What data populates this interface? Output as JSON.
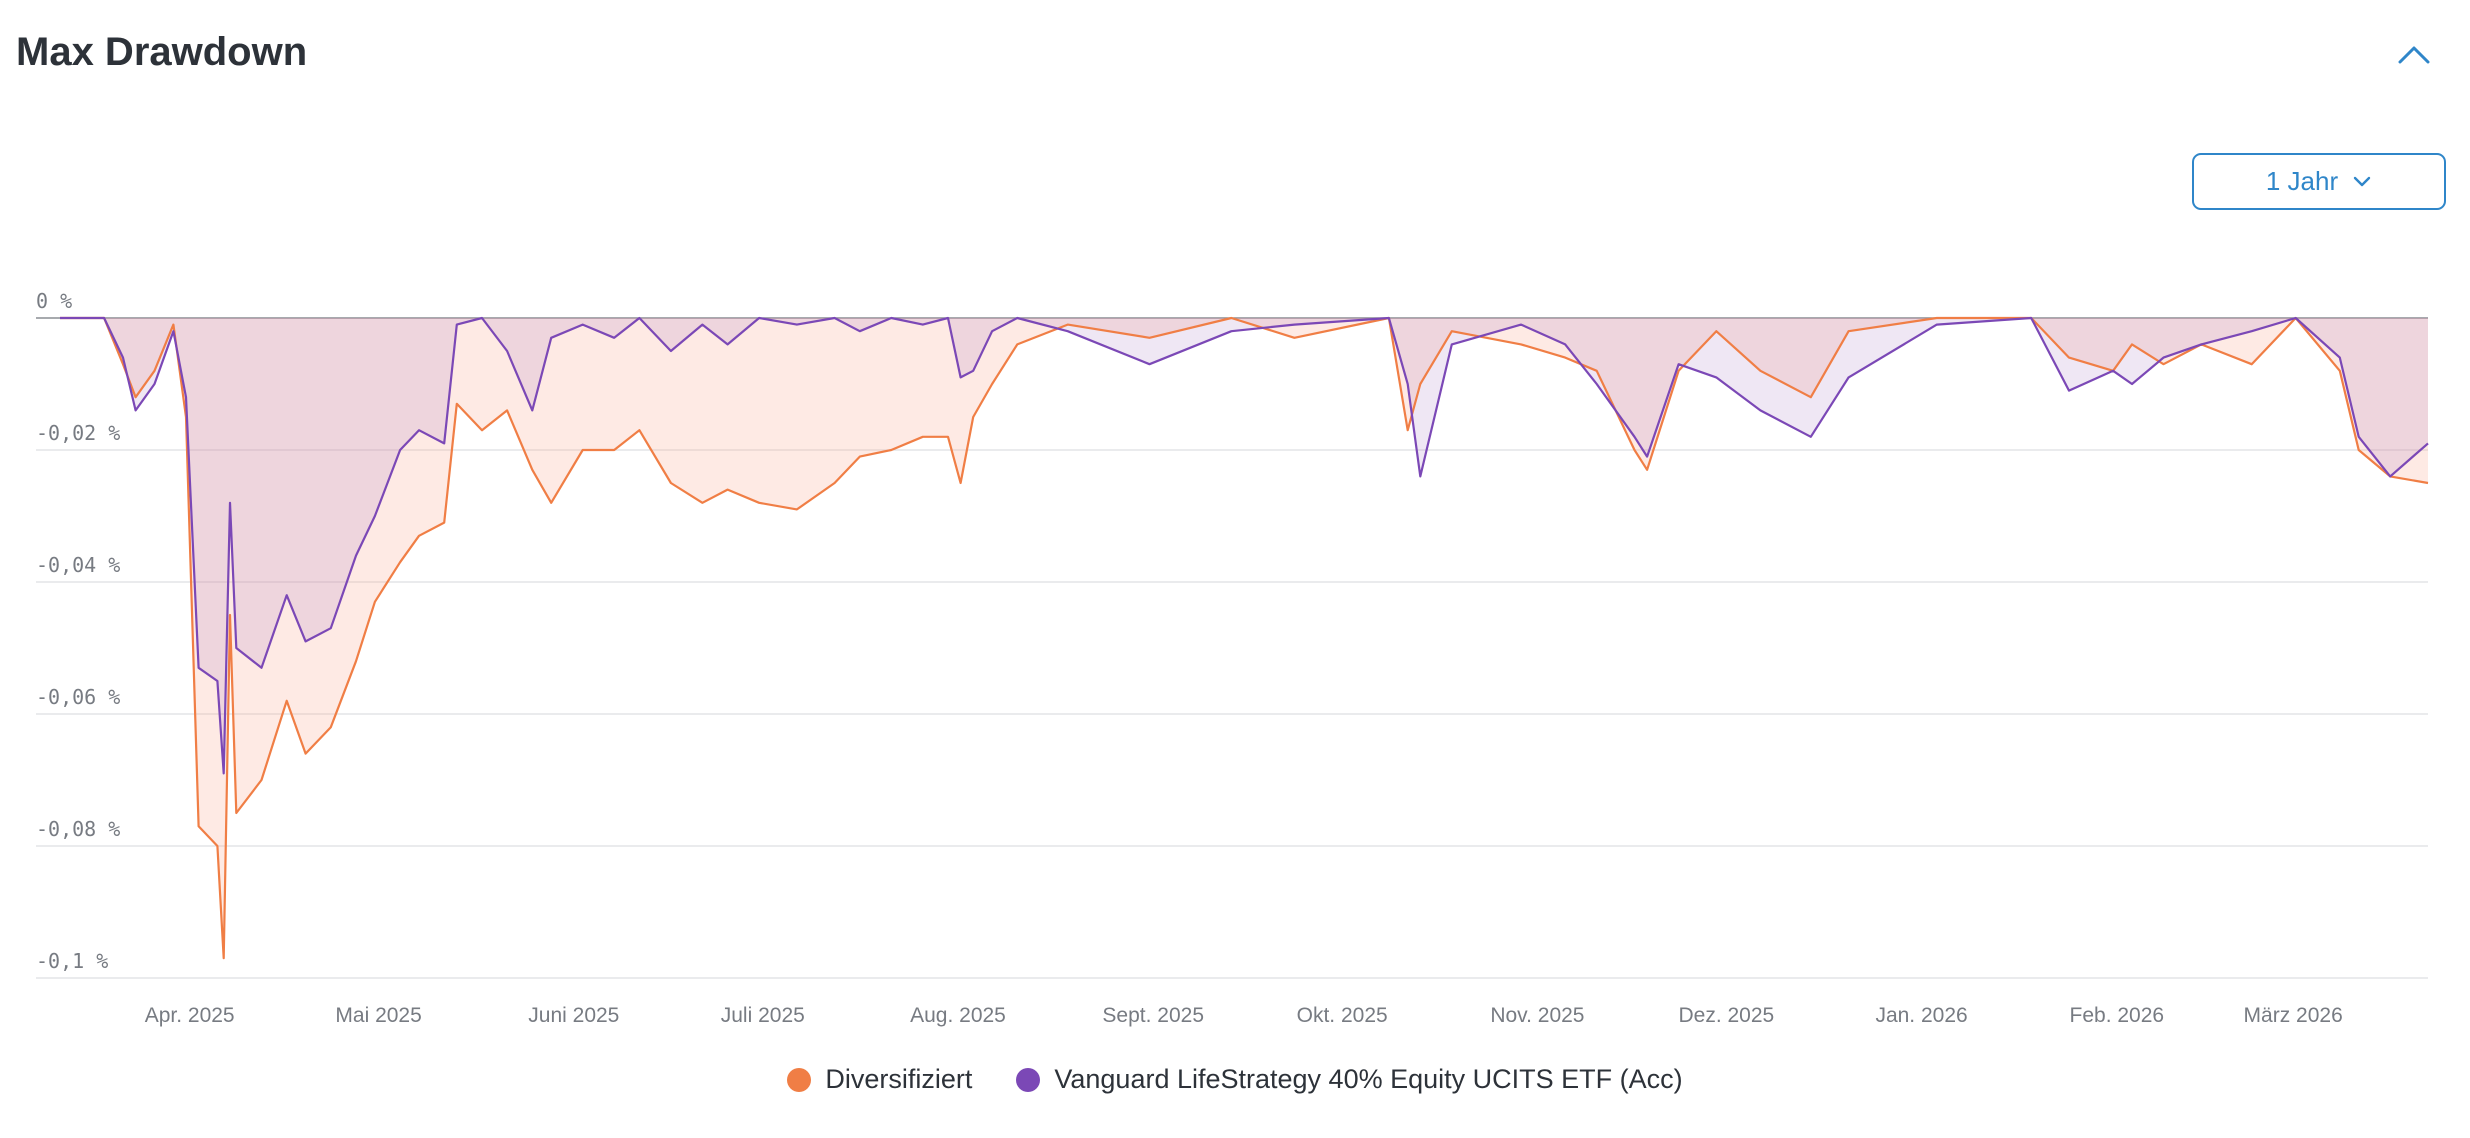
{
  "title": "Max Drawdown",
  "range_selector": {
    "label": "1 Jahr"
  },
  "colors": {
    "diversifiziert": "#f07e45",
    "vanguard": "#7b48b6",
    "accent": "#2f86c9"
  },
  "chart_data": {
    "type": "area",
    "ylim": [
      -0.1,
      0
    ],
    "yticks": [
      "0 %",
      "-0,02 %",
      "-0,04 %",
      "-0,06 %",
      "-0,08 %",
      "-0,1 %"
    ],
    "ytick_values": [
      0,
      -0.02,
      -0.04,
      -0.06,
      -0.08,
      -0.1
    ],
    "grid": true,
    "legend_position": "bottom",
    "xticks": [
      "Apr. 2025",
      "Mai 2025",
      "Juni 2025",
      "Juli 2025",
      "Aug. 2025",
      "Sept. 2025",
      "Okt. 2025",
      "Nov. 2025",
      "Dez. 2025",
      "Jan. 2026",
      "Feb. 2026",
      "März 2026"
    ],
    "x_range": [
      "2025-03-13",
      "2026-03-24"
    ],
    "series": [
      {
        "name": "Diversifiziert",
        "points": [
          [
            "2025-03-13",
            0
          ],
          [
            "2025-03-20",
            0
          ],
          [
            "2025-03-23",
            -0.007
          ],
          [
            "2025-03-25",
            -0.012
          ],
          [
            "2025-03-28",
            -0.008
          ],
          [
            "2025-03-31",
            -0.001
          ],
          [
            "2025-04-02",
            -0.015
          ],
          [
            "2025-04-04",
            -0.077
          ],
          [
            "2025-04-07",
            -0.08
          ],
          [
            "2025-04-08",
            -0.097
          ],
          [
            "2025-04-09",
            -0.045
          ],
          [
            "2025-04-10",
            -0.075
          ],
          [
            "2025-04-14",
            -0.07
          ],
          [
            "2025-04-18",
            -0.058
          ],
          [
            "2025-04-21",
            -0.066
          ],
          [
            "2025-04-25",
            -0.062
          ],
          [
            "2025-04-29",
            -0.052
          ],
          [
            "2025-05-02",
            -0.043
          ],
          [
            "2025-05-06",
            -0.037
          ],
          [
            "2025-05-09",
            -0.033
          ],
          [
            "2025-05-13",
            -0.031
          ],
          [
            "2025-05-15",
            -0.013
          ],
          [
            "2025-05-19",
            -0.017
          ],
          [
            "2025-05-23",
            -0.014
          ],
          [
            "2025-05-27",
            -0.023
          ],
          [
            "2025-05-30",
            -0.028
          ],
          [
            "2025-06-04",
            -0.02
          ],
          [
            "2025-06-09",
            -0.02
          ],
          [
            "2025-06-13",
            -0.017
          ],
          [
            "2025-06-18",
            -0.025
          ],
          [
            "2025-06-23",
            -0.028
          ],
          [
            "2025-06-27",
            -0.026
          ],
          [
            "2025-07-02",
            -0.028
          ],
          [
            "2025-07-08",
            -0.029
          ],
          [
            "2025-07-14",
            -0.025
          ],
          [
            "2025-07-18",
            -0.021
          ],
          [
            "2025-07-23",
            -0.02
          ],
          [
            "2025-07-28",
            -0.018
          ],
          [
            "2025-08-01",
            -0.018
          ],
          [
            "2025-08-03",
            -0.025
          ],
          [
            "2025-08-05",
            -0.015
          ],
          [
            "2025-08-08",
            -0.01
          ],
          [
            "2025-08-12",
            -0.004
          ],
          [
            "2025-08-20",
            -0.001
          ],
          [
            "2025-09-02",
            -0.003
          ],
          [
            "2025-09-15",
            0
          ],
          [
            "2025-09-25",
            -0.003
          ],
          [
            "2025-10-10",
            0
          ],
          [
            "2025-10-13",
            -0.017
          ],
          [
            "2025-10-15",
            -0.01
          ],
          [
            "2025-10-20",
            -0.002
          ],
          [
            "2025-10-31",
            -0.004
          ],
          [
            "2025-11-07",
            -0.006
          ],
          [
            "2025-11-12",
            -0.008
          ],
          [
            "2025-11-18",
            -0.02
          ],
          [
            "2025-11-20",
            -0.023
          ],
          [
            "2025-11-25",
            -0.008
          ],
          [
            "2025-12-01",
            -0.002
          ],
          [
            "2025-12-08",
            -0.008
          ],
          [
            "2025-12-16",
            -0.012
          ],
          [
            "2025-12-22",
            -0.002
          ],
          [
            "2026-01-05",
            0
          ],
          [
            "2026-01-20",
            0
          ],
          [
            "2026-01-26",
            -0.006
          ],
          [
            "2026-02-02",
            -0.008
          ],
          [
            "2026-02-05",
            -0.004
          ],
          [
            "2026-02-10",
            -0.007
          ],
          [
            "2026-02-16",
            -0.004
          ],
          [
            "2026-02-24",
            -0.007
          ],
          [
            "2026-03-03",
            0
          ],
          [
            "2026-03-10",
            -0.008
          ],
          [
            "2026-03-13",
            -0.02
          ],
          [
            "2026-03-18",
            -0.024
          ],
          [
            "2026-03-24",
            -0.025
          ]
        ]
      },
      {
        "name": "Vanguard LifeStrategy 40% Equity UCITS ETF (Acc)",
        "points": [
          [
            "2025-03-13",
            0
          ],
          [
            "2025-03-20",
            0
          ],
          [
            "2025-03-23",
            -0.006
          ],
          [
            "2025-03-25",
            -0.014
          ],
          [
            "2025-03-28",
            -0.01
          ],
          [
            "2025-03-31",
            -0.002
          ],
          [
            "2025-04-02",
            -0.012
          ],
          [
            "2025-04-04",
            -0.053
          ],
          [
            "2025-04-07",
            -0.055
          ],
          [
            "2025-04-08",
            -0.069
          ],
          [
            "2025-04-09",
            -0.028
          ],
          [
            "2025-04-10",
            -0.05
          ],
          [
            "2025-04-14",
            -0.053
          ],
          [
            "2025-04-18",
            -0.042
          ],
          [
            "2025-04-21",
            -0.049
          ],
          [
            "2025-04-25",
            -0.047
          ],
          [
            "2025-04-29",
            -0.036
          ],
          [
            "2025-05-02",
            -0.03
          ],
          [
            "2025-05-06",
            -0.02
          ],
          [
            "2025-05-09",
            -0.017
          ],
          [
            "2025-05-13",
            -0.019
          ],
          [
            "2025-05-15",
            -0.001
          ],
          [
            "2025-05-19",
            0
          ],
          [
            "2025-05-23",
            -0.005
          ],
          [
            "2025-05-27",
            -0.014
          ],
          [
            "2025-05-30",
            -0.003
          ],
          [
            "2025-06-04",
            -0.001
          ],
          [
            "2025-06-09",
            -0.003
          ],
          [
            "2025-06-13",
            0
          ],
          [
            "2025-06-18",
            -0.005
          ],
          [
            "2025-06-23",
            -0.001
          ],
          [
            "2025-06-27",
            -0.004
          ],
          [
            "2025-07-02",
            0
          ],
          [
            "2025-07-08",
            -0.001
          ],
          [
            "2025-07-14",
            0
          ],
          [
            "2025-07-18",
            -0.002
          ],
          [
            "2025-07-23",
            0
          ],
          [
            "2025-07-28",
            -0.001
          ],
          [
            "2025-08-01",
            0
          ],
          [
            "2025-08-03",
            -0.009
          ],
          [
            "2025-08-05",
            -0.008
          ],
          [
            "2025-08-08",
            -0.002
          ],
          [
            "2025-08-12",
            0
          ],
          [
            "2025-08-20",
            -0.002
          ],
          [
            "2025-09-02",
            -0.007
          ],
          [
            "2025-09-15",
            -0.002
          ],
          [
            "2025-09-25",
            -0.001
          ],
          [
            "2025-10-10",
            0
          ],
          [
            "2025-10-13",
            -0.01
          ],
          [
            "2025-10-15",
            -0.024
          ],
          [
            "2025-10-20",
            -0.004
          ],
          [
            "2025-10-31",
            -0.001
          ],
          [
            "2025-11-07",
            -0.004
          ],
          [
            "2025-11-12",
            -0.01
          ],
          [
            "2025-11-18",
            -0.018
          ],
          [
            "2025-11-20",
            -0.021
          ],
          [
            "2025-11-25",
            -0.007
          ],
          [
            "2025-12-01",
            -0.009
          ],
          [
            "2025-12-08",
            -0.014
          ],
          [
            "2025-12-16",
            -0.018
          ],
          [
            "2025-12-22",
            -0.009
          ],
          [
            "2026-01-05",
            -0.001
          ],
          [
            "2026-01-20",
            0
          ],
          [
            "2026-01-26",
            -0.011
          ],
          [
            "2026-02-02",
            -0.008
          ],
          [
            "2026-02-05",
            -0.01
          ],
          [
            "2026-02-10",
            -0.006
          ],
          [
            "2026-02-16",
            -0.004
          ],
          [
            "2026-02-24",
            -0.002
          ],
          [
            "2026-03-03",
            0
          ],
          [
            "2026-03-10",
            -0.006
          ],
          [
            "2026-03-13",
            -0.018
          ],
          [
            "2026-03-18",
            -0.024
          ],
          [
            "2026-03-24",
            -0.019
          ]
        ]
      }
    ]
  }
}
